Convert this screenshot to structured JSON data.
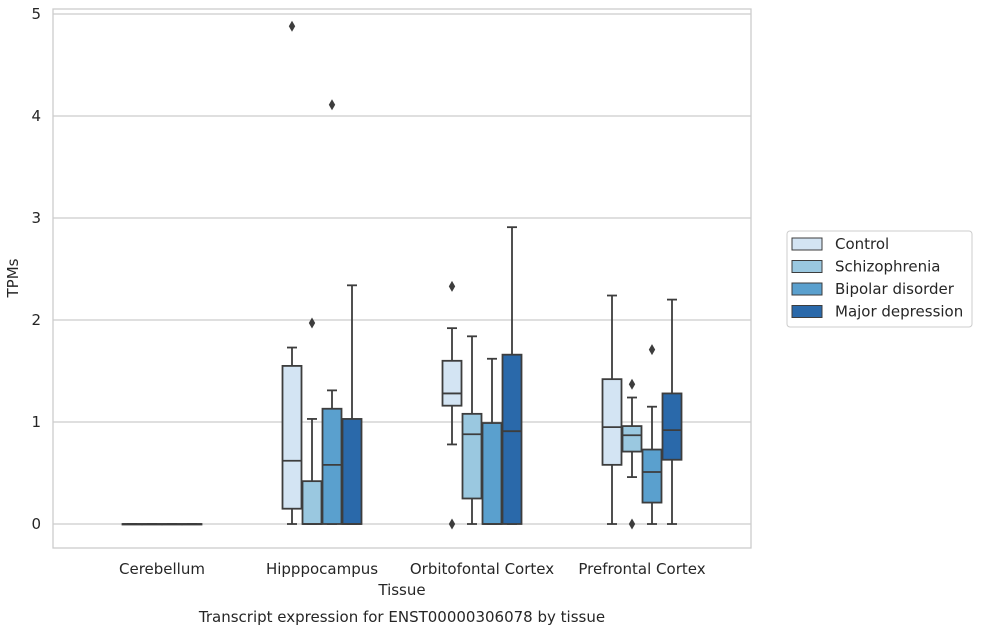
{
  "chart_data": {
    "type": "box",
    "title": "",
    "caption": "Transcript expression for ENST00000306078 by tissue",
    "xlabel": "Tissue",
    "ylabel": "TPMs",
    "ylim": [
      -0.23,
      5.12
    ],
    "yticks": [
      0,
      1,
      2,
      3,
      4,
      5
    ],
    "grid": "horizontal",
    "legend_position": "right",
    "categories": [
      "Cerebellum",
      "Hipppocampus",
      "Orbitofontal Cortex",
      "Prefrontal Cortex"
    ],
    "series": [
      {
        "name": "Control",
        "color": "#d3e4f3",
        "boxes": [
          {
            "category": "Cerebellum",
            "whislo": 0,
            "q1": 0,
            "med": 0,
            "q3": 0,
            "whishi": 0,
            "fliers": []
          },
          {
            "category": "Hipppocampus",
            "whislo": 0,
            "q1": 0.15,
            "med": 0.62,
            "q3": 1.55,
            "whishi": 1.73,
            "fliers": [
              4.88
            ]
          },
          {
            "category": "Orbitofontal Cortex",
            "whislo": 0.78,
            "q1": 1.16,
            "med": 1.28,
            "q3": 1.6,
            "whishi": 1.92,
            "fliers": [
              2.33,
              0
            ]
          },
          {
            "category": "Prefrontal Cortex",
            "whislo": 0,
            "q1": 0.58,
            "med": 0.95,
            "q3": 1.42,
            "whishi": 2.24,
            "fliers": []
          }
        ]
      },
      {
        "name": "Schizophrenia",
        "color": "#9ac8e0",
        "boxes": [
          {
            "category": "Cerebellum",
            "whislo": 0,
            "q1": 0,
            "med": 0,
            "q3": 0,
            "whishi": 0,
            "fliers": []
          },
          {
            "category": "Hipppocampus",
            "whislo": 0,
            "q1": 0,
            "med": 0,
            "q3": 0.42,
            "whishi": 1.03,
            "fliers": [
              1.97
            ]
          },
          {
            "category": "Orbitofontal Cortex",
            "whislo": 0,
            "q1": 0.25,
            "med": 0.88,
            "q3": 1.08,
            "whishi": 1.84,
            "fliers": []
          },
          {
            "category": "Prefrontal Cortex",
            "whislo": 0.46,
            "q1": 0.71,
            "med": 0.87,
            "q3": 0.96,
            "whishi": 1.24,
            "fliers": [
              1.37,
              0
            ]
          }
        ]
      },
      {
        "name": "Bipolar disorder",
        "color": "#5aa0ce",
        "boxes": [
          {
            "category": "Cerebellum",
            "whislo": 0,
            "q1": 0,
            "med": 0,
            "q3": 0,
            "whishi": 0,
            "fliers": []
          },
          {
            "category": "Hipppocampus",
            "whislo": 0,
            "q1": 0,
            "med": 0.58,
            "q3": 1.13,
            "whishi": 1.31,
            "fliers": [
              4.11
            ]
          },
          {
            "category": "Orbitofontal Cortex",
            "whislo": 0,
            "q1": 0,
            "med": 0,
            "q3": 0.99,
            "whishi": 1.62,
            "fliers": []
          },
          {
            "category": "Prefrontal Cortex",
            "whislo": 0,
            "q1": 0.21,
            "med": 0.51,
            "q3": 0.73,
            "whishi": 1.15,
            "fliers": [
              1.71
            ]
          }
        ]
      },
      {
        "name": "Major depression",
        "color": "#2a69aa",
        "boxes": [
          {
            "category": "Cerebellum",
            "whislo": 0,
            "q1": 0,
            "med": 0,
            "q3": 0,
            "whishi": 0,
            "fliers": []
          },
          {
            "category": "Hipppocampus",
            "whislo": 0,
            "q1": 0,
            "med": 0,
            "q3": 1.03,
            "whishi": 2.34,
            "fliers": []
          },
          {
            "category": "Orbitofontal Cortex",
            "whislo": 0,
            "q1": 0,
            "med": 0.91,
            "q3": 1.66,
            "whishi": 2.91,
            "fliers": []
          },
          {
            "category": "Prefrontal Cortex",
            "whislo": 0,
            "q1": 0.63,
            "med": 0.92,
            "q3": 1.28,
            "whishi": 2.2,
            "fliers": []
          }
        ]
      }
    ]
  }
}
